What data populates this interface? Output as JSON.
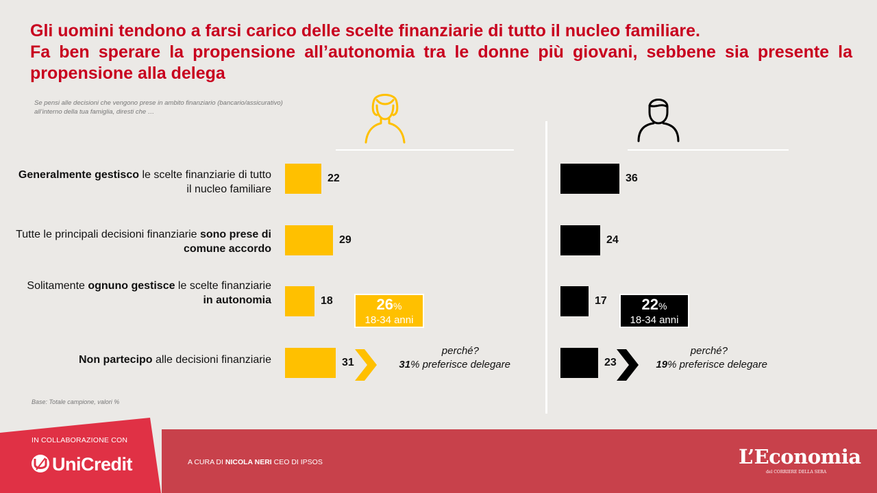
{
  "title": {
    "line1": "Gli uomini tendono a farsi carico delle scelte finanziarie di tutto il nucleo familiare.",
    "line2": "Fa ben sperare la propensione all’autonomia tra le donne più giovani, sebbene sia presente la propensione alla delega"
  },
  "question": {
    "line1": "Se pensi alle decisioni che vengono prese in ambito finanziario (bancario/assicurativo)",
    "line2": "all’interno della tua famiglia, diresti che …"
  },
  "rows": [
    {
      "pre": "",
      "bold": "Generalmente gestisco",
      "post": " le scelte finanziarie di tutto il nucleo familiare"
    },
    {
      "pre": "Tutte le principali decisioni finanziarie ",
      "bold": "sono prese di comune accordo",
      "post": ""
    },
    {
      "pre": "Solitamente ",
      "bold": "ognuno gestisce",
      "post": " le scelte finanziarie",
      "bold2": "in autonomia"
    },
    {
      "pre": "",
      "bold": "Non partecipo",
      "post": " alle decisioni finanziarie"
    }
  ],
  "chart_data": [
    {
      "type": "bar",
      "orientation": "horizontal",
      "series": [
        {
          "name": "",
          "values": [
            22,
            29,
            18,
            31
          ]
        }
      ],
      "categories": [
        "Generalmente gestisco le scelte finanziarie di tutto il nucleo familiare",
        "Tutte le principali decisioni finanziarie sono prese di comune accordo",
        "Solitamente ognuno gestisce le scelte finanziarie in autonomia",
        "Non partecipo alle decisioni finanziarie"
      ],
      "color": "#ffc000",
      "icon": "woman-icon"
    },
    {
      "type": "bar",
      "orientation": "horizontal",
      "series": [
        {
          "name": "",
          "values": [
            36,
            24,
            17,
            23
          ]
        }
      ],
      "categories": [
        "Generalmente gestisco le scelte finanziarie di tutto il nucleo familiare",
        "Tutte le principali decisioni finanziarie sono prese di comune accordo",
        "Solitamente ognuno gestisce le scelte finanziarie in autonomia",
        "Non partecipo alle decisioni finanziarie"
      ],
      "color": "#000000",
      "icon": "man-icon"
    }
  ],
  "callouts": {
    "female": {
      "pct": "26",
      "unit": "%",
      "age": "18-34 anni"
    },
    "male": {
      "pct": "22",
      "unit": "%",
      "age": "18-34 anni"
    }
  },
  "why": {
    "female": {
      "q": "perché?",
      "pct": "31",
      "text": "% preferisce delegare"
    },
    "male": {
      "q": "perché?",
      "pct": "19",
      "text": "% preferisce delegare"
    }
  },
  "base": "Base: Totale campione,  valori %",
  "footer": {
    "collab": "IN COLLABORAZIONE CON",
    "brand": "UniCredit",
    "cura_pre": "A CURA DI ",
    "cura_name": "NICOLA NERI",
    "cura_post": " CEO DI IPSOS",
    "econ": "L’Economia",
    "econ_sub": "del CORRIERE DELLA SERA"
  },
  "colors": {
    "title": "#c8001e",
    "female": "#ffc000",
    "male": "#000000",
    "footer": "#c8414b"
  }
}
